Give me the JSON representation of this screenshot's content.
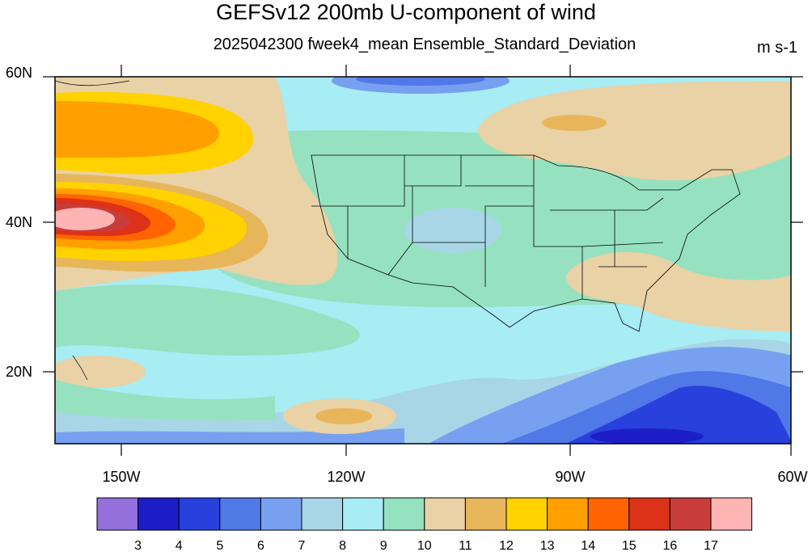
{
  "title": "GEFSv12 200mb U-component of wind",
  "subtitle": "2025042300 fweek4_mean Ensemble_Standard_Deviation",
  "units": "m s-1",
  "map": {
    "region": "North Pacific / North America",
    "lon_range": [
      "160W",
      "60W"
    ],
    "lat_range": [
      "10N",
      "60N"
    ],
    "lat_ticks": [
      "60N",
      "40N",
      "20N"
    ],
    "lon_ticks": [
      "150W",
      "120W",
      "90W",
      "60W"
    ]
  },
  "colorbar": {
    "levels": [
      "3",
      "4",
      "5",
      "6",
      "7",
      "8",
      "9",
      "10",
      "11",
      "12",
      "13",
      "14",
      "15",
      "16",
      "17"
    ],
    "colors": [
      "#9370db",
      "#1e1ec8",
      "#2840dc",
      "#5078e6",
      "#78a0f0",
      "#a8d6e6",
      "#a8ecf4",
      "#96e2c0",
      "#e8d2a6",
      "#e8b65a",
      "#ffd200",
      "#ffa000",
      "#ff6400",
      "#dc3218",
      "#c83c3c",
      "#ffb4b4"
    ]
  }
}
